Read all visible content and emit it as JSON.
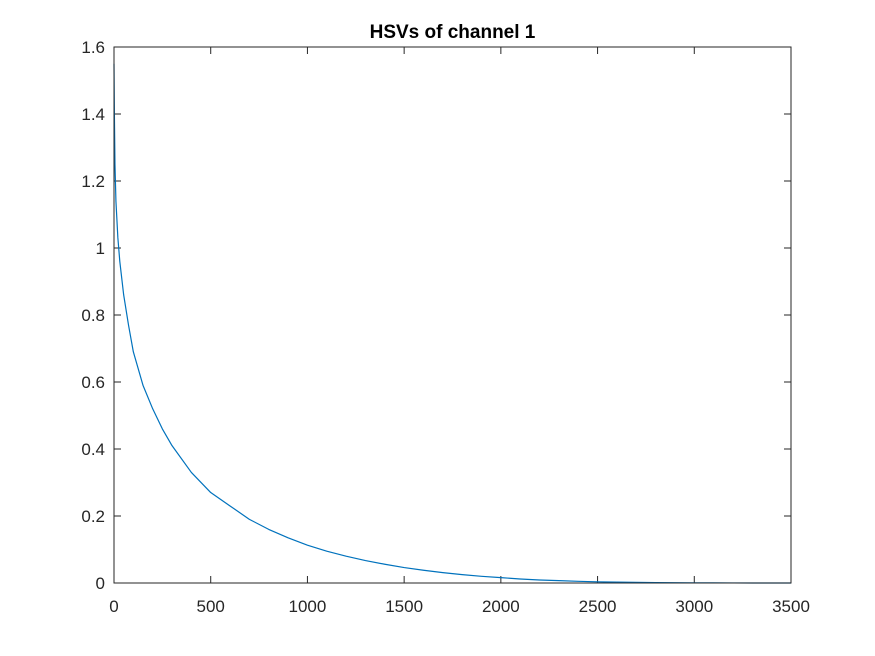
{
  "chart_data": {
    "type": "line",
    "title": "HSVs of channel 1",
    "xlabel": "",
    "ylabel": "",
    "xlim": [
      0,
      3500
    ],
    "ylim": [
      0,
      1.6
    ],
    "x_ticks": [
      "0",
      "500",
      "1000",
      "1500",
      "2000",
      "2500",
      "3000",
      "3500"
    ],
    "y_ticks": [
      "0",
      "0.2",
      "0.4",
      "0.6",
      "0.8",
      "1",
      "1.2",
      "1.4",
      "1.6"
    ],
    "grid": false,
    "line_color": "#0072BD",
    "series": [
      {
        "x": [
          0,
          2,
          5,
          10,
          20,
          30,
          50,
          75,
          100,
          150,
          200,
          250,
          300,
          400,
          500,
          600,
          700,
          800,
          900,
          1000,
          1100,
          1200,
          1300,
          1400,
          1500,
          1600,
          1700,
          1800,
          1900,
          2000,
          2100,
          2200,
          2300,
          2400,
          2500,
          2600,
          2700,
          2800,
          2900,
          3000,
          3100,
          3200,
          3300,
          3400,
          3500
        ],
        "y": [
          1.55,
          1.4,
          1.25,
          1.14,
          1.03,
          0.96,
          0.86,
          0.77,
          0.69,
          0.59,
          0.52,
          0.46,
          0.41,
          0.33,
          0.27,
          0.23,
          0.19,
          0.16,
          0.135,
          0.113,
          0.095,
          0.08,
          0.067,
          0.056,
          0.046,
          0.038,
          0.031,
          0.025,
          0.02,
          0.016,
          0.012,
          0.009,
          0.007,
          0.005,
          0.0035,
          0.0025,
          0.0018,
          0.0012,
          0.0008,
          0.0005,
          0.0003,
          0.0002,
          0.0001,
          0.0001,
          0.0
        ]
      }
    ]
  }
}
